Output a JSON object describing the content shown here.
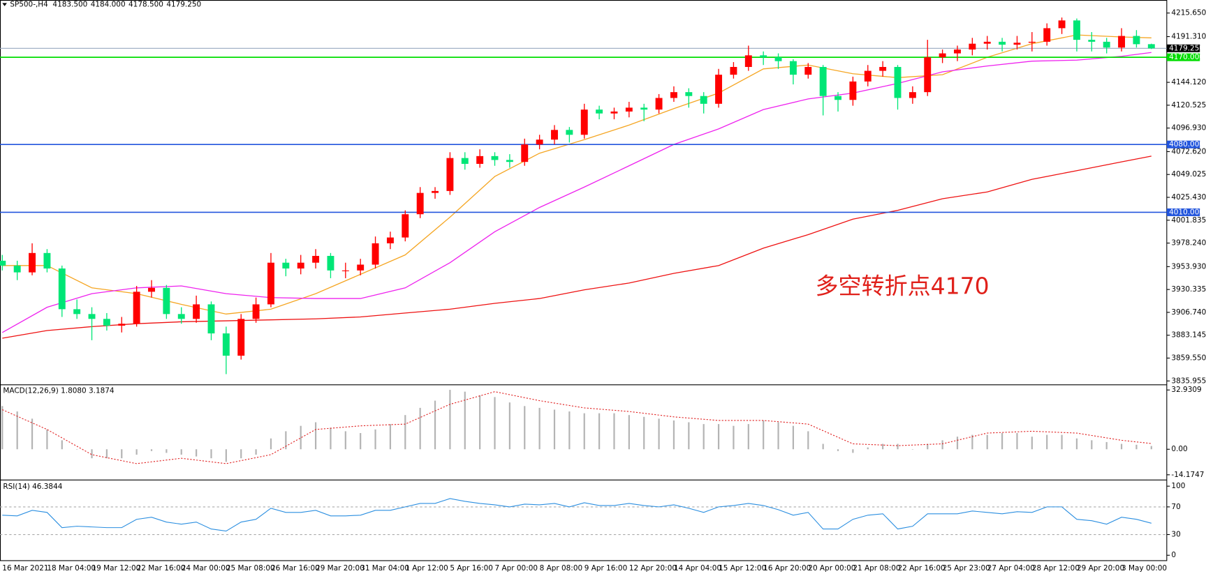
{
  "chart_data": {
    "type": "candlestick",
    "title": "SP500-,H4",
    "header_values": [
      "4183.500",
      "4184.000",
      "4178.500",
      "4179.250"
    ],
    "up_color": "#ff0000",
    "down_color": "#00e676",
    "categories": [
      "16 Mar 2021",
      null,
      null,
      "18 Mar 04:00",
      null,
      null,
      "19 Mar 12:00",
      null,
      null,
      "22 Mar 16:00",
      null,
      null,
      "24 Mar 00:00",
      null,
      null,
      "25 Mar 08:00",
      null,
      null,
      "26 Mar 16:00",
      null,
      null,
      "29 Mar 20:00",
      null,
      null,
      "31 Mar 04:00",
      null,
      null,
      "1 Apr 12:00",
      null,
      null,
      "5 Apr 16:00",
      null,
      null,
      "7 Apr 00:00",
      null,
      null,
      "8 Apr 08:00",
      null,
      null,
      "9 Apr 16:00",
      null,
      null,
      "12 Apr 20:00",
      null,
      null,
      "14 Apr 04:00",
      null,
      null,
      "15 Apr 12:00",
      null,
      null,
      "16 Apr 20:00",
      null,
      null,
      "20 Apr 00:00",
      null,
      null,
      "21 Apr 08:00",
      null,
      null,
      "22 Apr 16:00",
      null,
      null,
      "25 Apr 23:00",
      null,
      null,
      "27 Apr 04:00",
      null,
      null,
      "28 Apr 12:00",
      null,
      null,
      "29 Apr 20:00",
      null,
      null,
      "3 May 00:00",
      null,
      null
    ],
    "ohlc": [
      [
        3960,
        3966,
        3950,
        3955
      ],
      [
        3955,
        3960,
        3940,
        3948
      ],
      [
        3948,
        3978,
        3945,
        3968
      ],
      [
        3968,
        3972,
        3948,
        3952
      ],
      [
        3952,
        3955,
        3902,
        3910
      ],
      [
        3910,
        3920,
        3900,
        3905
      ],
      [
        3905,
        3912,
        3878,
        3900
      ],
      [
        3900,
        3906,
        3888,
        3893
      ],
      [
        3893,
        3902,
        3886,
        3895
      ],
      [
        3895,
        3934,
        3892,
        3928
      ],
      [
        3928,
        3940,
        3922,
        3932
      ],
      [
        3932,
        3935,
        3900,
        3905
      ],
      [
        3905,
        3912,
        3895,
        3900
      ],
      [
        3900,
        3924,
        3896,
        3915
      ],
      [
        3915,
        3918,
        3878,
        3885
      ],
      [
        3885,
        3892,
        3843,
        3862
      ],
      [
        3862,
        3905,
        3858,
        3900
      ],
      [
        3900,
        3922,
        3896,
        3915
      ],
      [
        3915,
        3968,
        3912,
        3958
      ],
      [
        3958,
        3962,
        3944,
        3952
      ],
      [
        3952,
        3966,
        3946,
        3958
      ],
      [
        3958,
        3972,
        3952,
        3965
      ],
      [
        3965,
        3968,
        3942,
        3950
      ],
      [
        3950,
        3958,
        3942,
        3950
      ],
      [
        3950,
        3962,
        3945,
        3956
      ],
      [
        3956,
        3985,
        3952,
        3978
      ],
      [
        3978,
        3990,
        3972,
        3984
      ],
      [
        3984,
        4012,
        3980,
        4008
      ],
      [
        4008,
        4036,
        4004,
        4030
      ],
      [
        4030,
        4036,
        4024,
        4032
      ],
      [
        4032,
        4072,
        4028,
        4066
      ],
      [
        4066,
        4072,
        4054,
        4060
      ],
      [
        4060,
        4075,
        4056,
        4068
      ],
      [
        4068,
        4072,
        4058,
        4064
      ],
      [
        4064,
        4070,
        4056,
        4062
      ],
      [
        4062,
        4086,
        4058,
        4080
      ],
      [
        4080,
        4090,
        4075,
        4085
      ],
      [
        4085,
        4100,
        4080,
        4095
      ],
      [
        4095,
        4098,
        4082,
        4090
      ],
      [
        4090,
        4122,
        4086,
        4116
      ],
      [
        4116,
        4120,
        4106,
        4112
      ],
      [
        4112,
        4118,
        4106,
        4114
      ],
      [
        4114,
        4124,
        4108,
        4118
      ],
      [
        4118,
        4122,
        4104,
        4116
      ],
      [
        4116,
        4132,
        4112,
        4128
      ],
      [
        4128,
        4140,
        4124,
        4134
      ],
      [
        4134,
        4138,
        4118,
        4130
      ],
      [
        4130,
        4134,
        4112,
        4122
      ],
      [
        4122,
        4158,
        4118,
        4152
      ],
      [
        4152,
        4165,
        4148,
        4160
      ],
      [
        4160,
        4182,
        4156,
        4172
      ],
      [
        4172,
        4176,
        4162,
        4170
      ],
      [
        4170,
        4174,
        4158,
        4166
      ],
      [
        4166,
        4168,
        4142,
        4152
      ],
      [
        4152,
        4164,
        4148,
        4160
      ],
      [
        4160,
        4162,
        4110,
        4130
      ],
      [
        4130,
        4134,
        4114,
        4126
      ],
      [
        4126,
        4150,
        4120,
        4145
      ],
      [
        4145,
        4162,
        4140,
        4156
      ],
      [
        4156,
        4166,
        4150,
        4160
      ],
      [
        4160,
        4162,
        4116,
        4128
      ],
      [
        4128,
        4140,
        4122,
        4134
      ],
      [
        4134,
        4188,
        4130,
        4170
      ],
      [
        4170,
        4178,
        4164,
        4174
      ],
      [
        4174,
        4182,
        4166,
        4178
      ],
      [
        4178,
        4190,
        4172,
        4184
      ],
      [
        4184,
        4192,
        4178,
        4186
      ],
      [
        4186,
        4190,
        4176,
        4183
      ],
      [
        4183,
        4192,
        4178,
        4185
      ],
      [
        4185,
        4196,
        4176,
        4186
      ],
      [
        4186,
        4205,
        4182,
        4200
      ],
      [
        4200,
        4211,
        4194,
        4208
      ],
      [
        4208,
        4210,
        4176,
        4188
      ],
      [
        4188,
        4196,
        4176,
        4186
      ],
      [
        4186,
        4190,
        4174,
        4180
      ],
      [
        4180,
        4200,
        4176,
        4192
      ],
      [
        4192,
        4198,
        4180,
        4183.5
      ],
      [
        4183.5,
        4184,
        4178.5,
        4179.25
      ]
    ],
    "ylim": [
      3832.8,
      4229.1
    ],
    "yticks": [
      {
        "value": 4215.65,
        "label": "4215.650"
      },
      {
        "value": 4191.31,
        "label": "4191.310"
      },
      {
        "value": 4144.12,
        "label": "4144.120"
      },
      4120.525,
      {
        "value": 4096.93,
        "label": "4096.930"
      },
      {
        "value": 4072.62,
        "label": "4072.620"
      },
      4049.025,
      {
        "value": 4025.43,
        "label": "4025.430"
      },
      4001.835,
      {
        "value": 3978.24,
        "label": "3978.240"
      },
      {
        "value": 3953.93,
        "label": "3953.930"
      },
      3930.335,
      {
        "value": 3906.74,
        "label": "3906.740"
      },
      3883.145,
      {
        "value": 3859.55,
        "label": "3859.550"
      },
      3835.955
    ],
    "moving_averages": [
      {
        "color": "#f5a623",
        "x": [
          0,
          3,
          6,
          9,
          12,
          15,
          18,
          21,
          24,
          27,
          30,
          33,
          36,
          39,
          42,
          45,
          48,
          51,
          54,
          57,
          60,
          63,
          66,
          69,
          72,
          75,
          77
        ],
        "values": [
          3955,
          3955,
          3932,
          3926,
          3915,
          3905,
          3910,
          3926,
          3946,
          3966,
          4005,
          4047,
          4071,
          4085,
          4100,
          4117,
          4133,
          4158,
          4162,
          4153,
          4149,
          4152,
          4170,
          4184,
          4193,
          4191,
          4190
        ]
      },
      {
        "color": "#ee22ee",
        "x": [
          0,
          3,
          6,
          9,
          12,
          15,
          18,
          21,
          24,
          27,
          30,
          33,
          36,
          39,
          42,
          45,
          48,
          51,
          54,
          57,
          60,
          63,
          66,
          69,
          72,
          75,
          77
        ],
        "values": [
          3886,
          3912,
          3926,
          3932,
          3934,
          3926,
          3922,
          3921,
          3921,
          3932,
          3958,
          3990,
          4015,
          4036,
          4058,
          4080,
          4096,
          4116,
          4127,
          4133,
          4143,
          4155,
          4161,
          4166,
          4167,
          4171,
          4175
        ]
      },
      {
        "color": "#ee1111",
        "x": [
          0,
          3,
          6,
          9,
          12,
          15,
          18,
          21,
          24,
          27,
          30,
          33,
          36,
          39,
          42,
          45,
          48,
          51,
          54,
          57,
          60,
          63,
          66,
          69,
          72,
          75,
          77
        ],
        "values": [
          3880,
          3888,
          3892,
          3895,
          3897,
          3898,
          3899,
          3900,
          3902,
          3906,
          3910,
          3916,
          3921,
          3930,
          3937,
          3947,
          3955,
          3973,
          3987,
          4003,
          4012,
          4024,
          4031,
          4044,
          4053,
          4062,
          4068
        ]
      }
    ],
    "levels": [
      {
        "value": 4170,
        "label": "4170.000",
        "color": "#00dd00"
      },
      {
        "value": 4080,
        "label": "4080.000",
        "color": "#2255dd"
      },
      {
        "value": 4010,
        "label": "4010.000",
        "color": "#2255dd"
      }
    ],
    "price_line": {
      "value": 4179.25,
      "label": "4179.250",
      "color": "#98a8c0"
    },
    "annotation": "多空转折点4170",
    "macd": {
      "label": "MACD(12,26,9) 1.8080 3.1874",
      "ylim": [
        -15.8,
        35.4
      ],
      "yticks": [
        32.9309,
        {
          "value": 0,
          "label": "0.00"
        },
        -14.1747
      ],
      "histogram_color": "#b4b4b4",
      "histogram": [
        24,
        21,
        17,
        11,
        5,
        0,
        -5,
        -5,
        -5,
        -3,
        -1,
        -2,
        -3,
        -4,
        -5,
        -7,
        -5,
        -3,
        6,
        10,
        13,
        15,
        12,
        10,
        9,
        11,
        14,
        19,
        23,
        27,
        33,
        32,
        30,
        29,
        26,
        24,
        23,
        22,
        21,
        20,
        20,
        20,
        19,
        18,
        17,
        16,
        15,
        14,
        14,
        13,
        14,
        16,
        15,
        13,
        10,
        3,
        -1,
        -2,
        1,
        3,
        3,
        0,
        3,
        5,
        7,
        8,
        8,
        9,
        9,
        7,
        8,
        8,
        6,
        5,
        4,
        3,
        2.5,
        1.808
      ],
      "signal": {
        "color": "#e02020",
        "x": [
          0,
          3,
          6,
          9,
          12,
          15,
          18,
          21,
          24,
          27,
          30,
          33,
          36,
          39,
          42,
          45,
          48,
          51,
          54,
          57,
          60,
          63,
          66,
          69,
          72,
          75,
          77
        ],
        "values": [
          22,
          11,
          -3,
          -8,
          -5,
          -8,
          -3,
          11,
          13,
          14,
          25,
          32,
          27,
          23,
          21,
          18,
          16,
          16,
          14,
          3,
          2,
          3,
          9,
          10,
          9,
          5,
          3.1874
        ]
      }
    },
    "rsi": {
      "label": "RSI(14) 46.3844",
      "ylim": [
        -7.8,
        106.7
      ],
      "yticks": [
        100,
        70,
        30,
        0
      ],
      "levels": [
        70,
        30
      ],
      "color": "#2a8ee0",
      "values": [
        58,
        57,
        65,
        62,
        40,
        42,
        41,
        40,
        40,
        52,
        55,
        48,
        45,
        48,
        38,
        35,
        48,
        52,
        68,
        62,
        62,
        65,
        57,
        57,
        58,
        65,
        65,
        70,
        75,
        75,
        82,
        78,
        75,
        73,
        70,
        74,
        73,
        75,
        70,
        76,
        72,
        72,
        75,
        72,
        70,
        73,
        68,
        62,
        70,
        72,
        75,
        72,
        66,
        58,
        62,
        38,
        38,
        52,
        58,
        60,
        38,
        42,
        60,
        60,
        60,
        64,
        62,
        60,
        63,
        62,
        70,
        70,
        52,
        50,
        45,
        55,
        52,
        46.3844
      ]
    }
  }
}
